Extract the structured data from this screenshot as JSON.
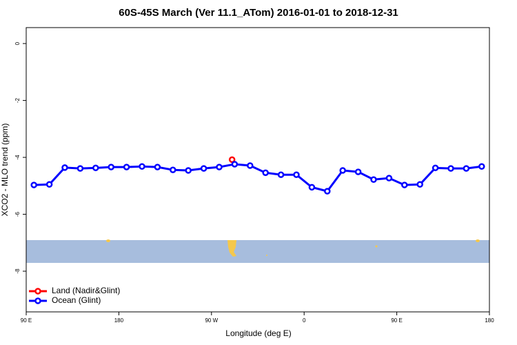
{
  "chart_data": {
    "type": "line",
    "title": "60S-45S March (Ver 11.1_ATom)   2016-01-01 to 2018-12-31",
    "x_label": "Longitude (deg E)",
    "y_label": "XCO2 - MLO trend (ppm)",
    "xlim": [
      90,
      540
    ],
    "ylim": [
      -9.43,
      0.56
    ],
    "xticks": [
      {
        "value": 90,
        "label": "90 E"
      },
      180,
      {
        "value": 270,
        "label": "90 W"
      },
      {
        "value": 360,
        "label": "0"
      },
      {
        "value": 450,
        "label": "90 E"
      },
      {
        "value": 540,
        "label": "180"
      }
    ],
    "yticks": [
      0,
      -2,
      -4,
      -6,
      -8
    ],
    "legend": "bottom-left",
    "series": [
      {
        "name": "Land (Nadir&Glint)",
        "color": "#ff0000",
        "x": [
          290
        ],
        "values": [
          -4.08
        ]
      },
      {
        "name": "Ocean (Glint)",
        "color": "#0000ff",
        "x": [
          97.5,
          112.5,
          127.5,
          142.5,
          157.5,
          172.5,
          187.5,
          202.5,
          217.5,
          232.5,
          247.5,
          262.5,
          277.5,
          292.5,
          307.5,
          322.5,
          337.5,
          352.5,
          367.5,
          382.5,
          397.5,
          412.5,
          427.5,
          442.5,
          457.5,
          472.5,
          487.5,
          502.5,
          517.5,
          532.5
        ],
        "values": [
          -4.97,
          -4.95,
          -4.36,
          -4.39,
          -4.37,
          -4.34,
          -4.34,
          -4.32,
          -4.34,
          -4.44,
          -4.46,
          -4.39,
          -4.34,
          -4.24,
          -4.29,
          -4.54,
          -4.61,
          -4.61,
          -5.05,
          -5.19,
          -4.46,
          -4.51,
          -4.78,
          -4.73,
          -4.97,
          -4.95,
          -4.37,
          -4.39,
          -4.39,
          -4.32
        ]
      }
    ]
  }
}
